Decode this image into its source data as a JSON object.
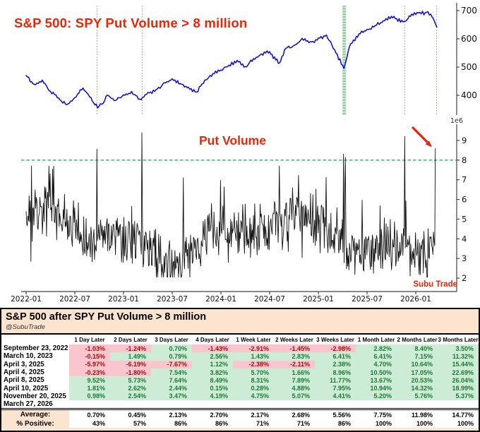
{
  "watermark": "Subu Trade",
  "chart_data": [
    {
      "type": "line",
      "title": "S&P 500: SPY Put Volume > 8 million",
      "title_color": "#ee2409",
      "line_color": "#1512d0",
      "x_ticks": [
        "2022-01",
        "2022-07",
        "2023-01",
        "2023-07",
        "2024-01",
        "2024-07",
        "2025-01",
        "2025-07",
        "2026-01"
      ],
      "y_ticks": [
        400,
        500,
        600,
        700
      ],
      "ylim": [
        350,
        710
      ],
      "x_start_month": "2022-01",
      "points_monthly": [
        [
          0,
          470
        ],
        [
          1,
          437
        ],
        [
          2,
          452
        ],
        [
          3,
          412
        ],
        [
          4,
          389
        ],
        [
          5,
          365
        ],
        [
          6,
          390
        ],
        [
          7,
          424
        ],
        [
          8,
          390
        ],
        [
          8.8,
          357
        ],
        [
          9.5,
          370
        ],
        [
          10,
          402
        ],
        [
          11,
          380
        ],
        [
          12,
          400
        ],
        [
          13,
          412
        ],
        [
          14,
          385
        ],
        [
          15,
          408
        ],
        [
          16,
          418
        ],
        [
          17,
          443
        ],
        [
          18,
          457
        ],
        [
          19,
          440
        ],
        [
          20,
          427
        ],
        [
          21,
          410
        ],
        [
          22,
          452
        ],
        [
          23,
          475
        ],
        [
          24,
          488
        ],
        [
          25,
          505
        ],
        [
          26,
          522
        ],
        [
          27,
          500
        ],
        [
          28,
          528
        ],
        [
          29,
          545
        ],
        [
          30,
          553
        ],
        [
          31.2,
          512
        ],
        [
          32,
          568
        ],
        [
          33,
          575
        ],
        [
          34,
          600
        ],
        [
          35,
          588
        ],
        [
          36,
          601
        ],
        [
          37,
          612
        ],
        [
          38,
          560
        ],
        [
          39.15,
          497
        ],
        [
          40,
          585
        ],
        [
          41,
          616
        ],
        [
          42,
          632
        ],
        [
          43,
          645
        ],
        [
          44,
          662
        ],
        [
          45,
          678
        ],
        [
          46.6,
          660
        ],
        [
          47.5,
          686
        ],
        [
          48.5,
          692
        ],
        [
          49.5,
          694
        ],
        [
          50,
          680
        ],
        [
          50.6,
          640
        ]
      ],
      "event_dates": [
        "2022-09-23",
        "2023-03-10",
        "2025-04-03",
        "2025-04-04",
        "2025-04-08",
        "2025-04-10",
        "2025-11-20",
        "2026-03-27"
      ],
      "event_line_color": "#7dbb8a",
      "grid": false,
      "legend": "none"
    },
    {
      "type": "line",
      "title": "Put Volume",
      "units_label": "1e6",
      "y_ticks": [
        2,
        3,
        4,
        5,
        6,
        7,
        8,
        9
      ],
      "ylim": [
        1.6,
        9.9
      ],
      "threshold": 8,
      "threshold_color": "#2e9e5b",
      "line_color": "#111111",
      "typical_range": [
        2.1,
        7.7
      ],
      "spikes": [
        {
          "date": "2022-09-23",
          "value": 8.55
        },
        {
          "date": "2023-03-10",
          "value": 9.4
        },
        {
          "date": "2025-04-03",
          "value": 9.5
        },
        {
          "date": "2025-04-04",
          "value": 8.3
        },
        {
          "date": "2025-04-08",
          "value": 9.0
        },
        {
          "date": "2025-04-10",
          "value": 8.15
        },
        {
          "date": "2025-11-20",
          "value": 9.2
        },
        {
          "date": "2026-03-27",
          "value": 8.6
        }
      ],
      "annotation_arrow": {
        "points_to": "2026-03-27",
        "color": "#e5250e"
      },
      "grid": false,
      "legend": "none"
    }
  ],
  "table": {
    "title": "S&P 500 after SPY Put Volume > 8 million",
    "subtitle": "@SubuTrade",
    "columns": [
      "1 Day Later",
      "2 Days Later",
      "3 Days Later",
      "4 Days Later",
      "1 Week Later",
      "2 Weeks Later",
      "3 Weeks Later",
      "1 Month Later",
      "2 Months Later",
      "3 Months Later"
    ],
    "rows": [
      {
        "date": "September 23, 2022",
        "values": [
          "-1.03%",
          "-1.24%",
          "0.70%",
          "-1.43%",
          "-2.91%",
          "-1.45%",
          "-2.98%",
          "2.82%",
          "8.40%",
          "3.50%"
        ]
      },
      {
        "date": "March 10, 2023",
        "values": [
          "-0.15%",
          "1.49%",
          "0.79%",
          "2.56%",
          "1.43%",
          "2.83%",
          "6.41%",
          "6.41%",
          "7.15%",
          "11.32%"
        ]
      },
      {
        "date": "April 3, 2025",
        "values": [
          "-5.97%",
          "-6.19%",
          "-7.67%",
          "1.12%",
          "-2.38%",
          "-2.11%",
          "2.38%",
          "4.70%",
          "10.64%",
          "15.44%"
        ]
      },
      {
        "date": "April 4, 2025",
        "values": [
          "-0.23%",
          "-1.80%",
          "7.54%",
          "3.82%",
          "5.70%",
          "1.66%",
          "8.96%",
          "10.50%",
          "17.05%",
          "22.69%"
        ]
      },
      {
        "date": "April 8, 2025",
        "values": [
          "9.52%",
          "5.73%",
          "7.64%",
          "8.49%",
          "8.31%",
          "7.89%",
          "11.77%",
          "13.67%",
          "20.53%",
          "26.04%"
        ]
      },
      {
        "date": "April 10, 2025",
        "values": [
          "1.81%",
          "2.62%",
          "2.44%",
          "0.15%",
          "0.28%",
          "4.88%",
          "7.95%",
          "10.94%",
          "14.32%",
          "18.99%"
        ]
      },
      {
        "date": "November 20, 2025",
        "values": [
          "0.98%",
          "2.54%",
          "3.47%",
          "4.19%",
          "4.75%",
          "5.07%",
          "4.41%",
          "5.20%",
          "5.76%",
          "5.37%"
        ]
      },
      {
        "date": "March 27, 2026",
        "values": [
          "",
          "",
          "",
          "",
          "",
          "",
          "",
          "",
          "",
          ""
        ]
      }
    ],
    "summary": [
      {
        "label": "Average:",
        "values": [
          "0.70%",
          "0.45%",
          "2.13%",
          "2.70%",
          "2.17%",
          "2.68%",
          "5.56%",
          "7.75%",
          "11.98%",
          "14.77%"
        ]
      },
      {
        "label": "% Positive:",
        "values": [
          "43%",
          "57%",
          "86%",
          "86%",
          "71%",
          "71%",
          "86%",
          "100%",
          "100%",
          "100%"
        ]
      }
    ],
    "colors": {
      "negative_bg": "#fbc5cd",
      "negative_text": "#ab0a0a",
      "positive_bg": "#cdecd5",
      "positive_text": "#1d7a33",
      "band_bg": "#fce4cf"
    }
  }
}
